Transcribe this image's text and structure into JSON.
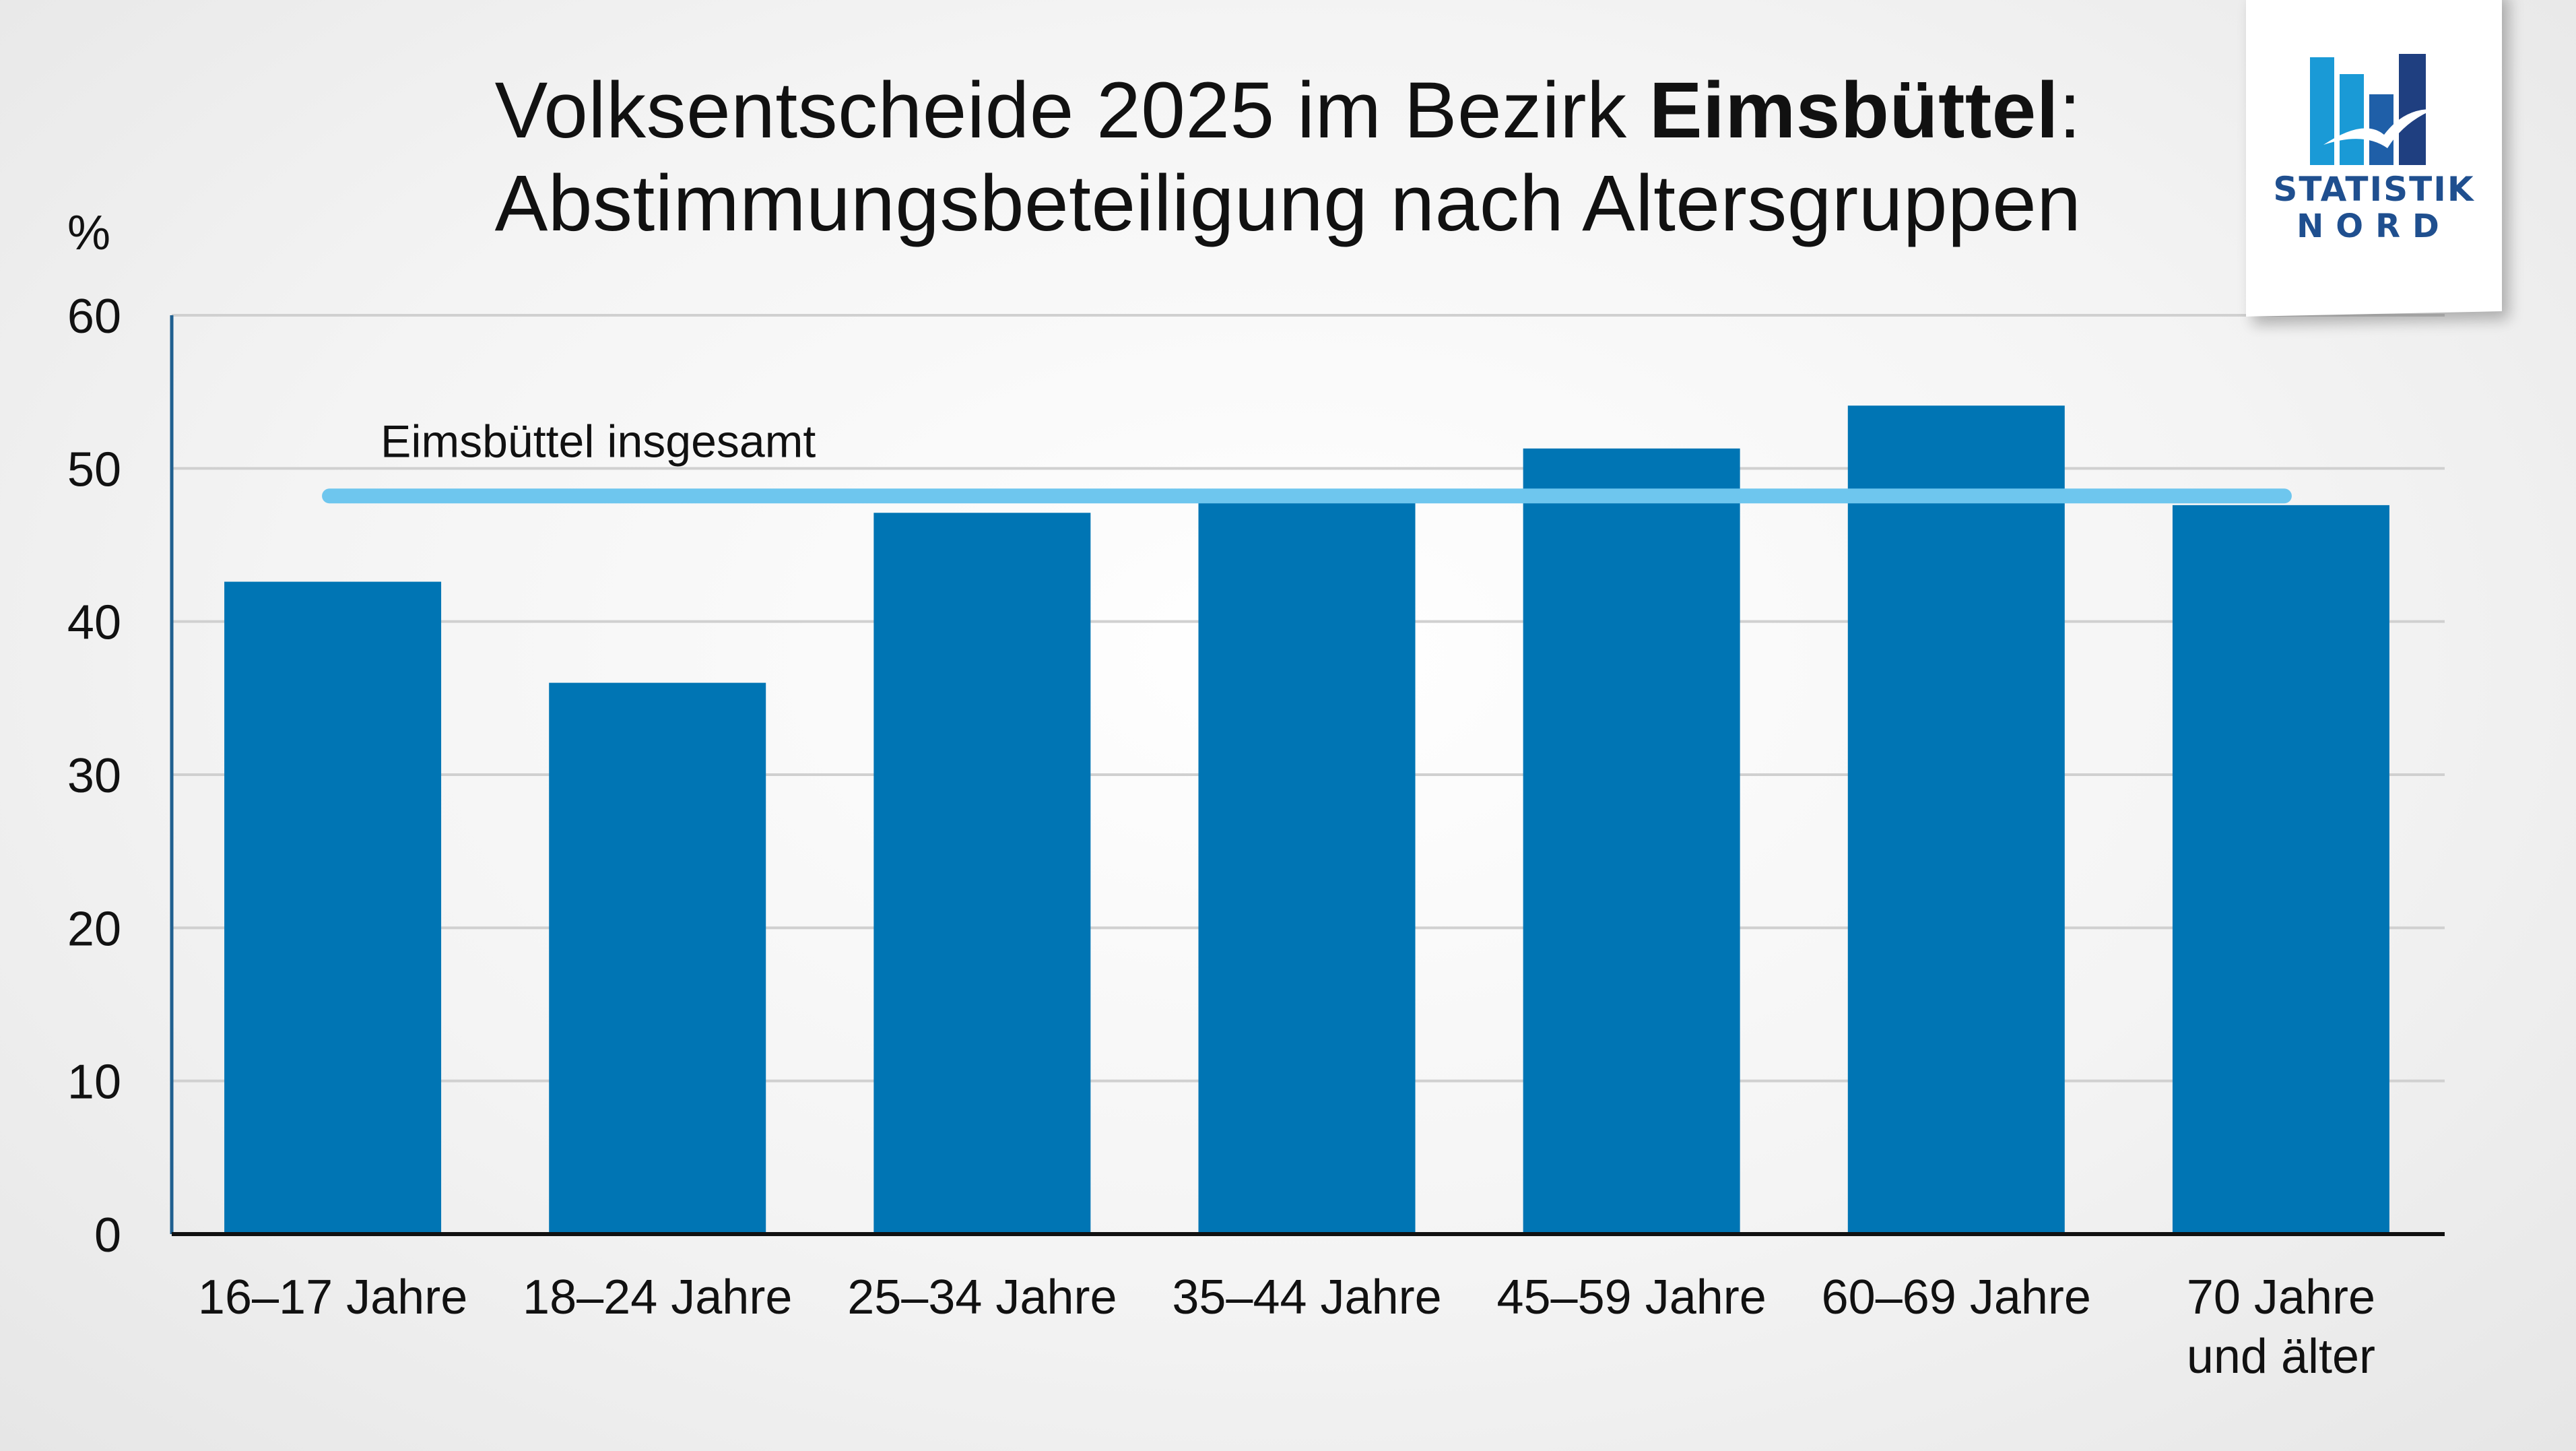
{
  "title": {
    "line1_prefix": "Volksentscheide 2025 im Bezirk ",
    "line1_bold": "Eimsbüttel",
    "line1_suffix": ":",
    "line2": "Abstimmungsbeteiligung nach Altersgruppen"
  },
  "logo": {
    "line1": "STATISTIK",
    "line2": "NORD"
  },
  "colors": {
    "bar": "#0075b4",
    "reference_line": "#6ec6ee",
    "gridline": "#d0d0d0",
    "axis": "#111111",
    "y_axis": "#1f5f8f"
  },
  "chart_data": {
    "type": "bar",
    "ylabel": "%",
    "ylim": [
      0,
      60
    ],
    "yticks": [
      "0",
      "10",
      "20",
      "30",
      "40",
      "50",
      "60"
    ],
    "categories": [
      [
        "16–17 Jahre"
      ],
      [
        "18–24 Jahre"
      ],
      [
        "25–34 Jahre"
      ],
      [
        "35–44 Jahre"
      ],
      [
        "45–59 Jahre"
      ],
      [
        "60–69 Jahre"
      ],
      [
        "70 Jahre",
        "und älter"
      ]
    ],
    "values": [
      42.6,
      36.0,
      47.1,
      48.1,
      51.3,
      54.1,
      47.6
    ],
    "reference_line": {
      "label": "Eimsbüttel insgesamt",
      "value": 48.2
    },
    "grid": true,
    "legend": "none"
  }
}
